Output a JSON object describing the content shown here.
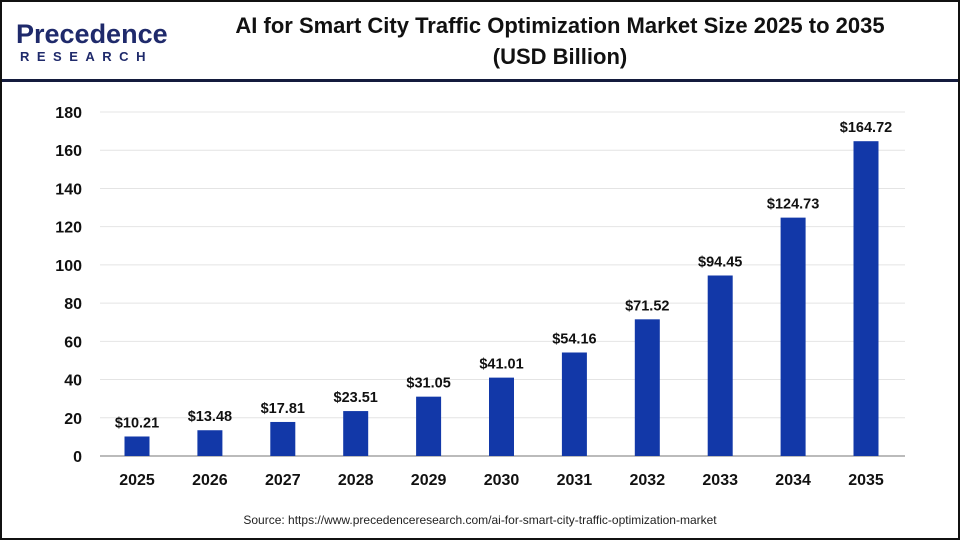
{
  "header": {
    "logo_text": "Precedence",
    "logo_subtext": "RESEARCH",
    "title_line1": "AI for Smart City Traffic Optimization Market Size 2025 to 2035",
    "title_line2": "(USD Billion)"
  },
  "source": "Source: https://www.precedenceresearch.com/ai-for-smart-city-traffic-optimization-market",
  "chart_data": {
    "type": "bar",
    "title": "AI for Smart City Traffic Optimization Market Size 2025 to 2035 (USD Billion)",
    "categories": [
      "2025",
      "2026",
      "2027",
      "2028",
      "2029",
      "2030",
      "2031",
      "2032",
      "2033",
      "2034",
      "2035"
    ],
    "values": [
      10.21,
      13.48,
      17.81,
      23.51,
      31.05,
      41.01,
      54.16,
      71.52,
      94.45,
      124.73,
      164.72
    ],
    "data_labels": [
      "$10.21",
      "$13.48",
      "$17.81",
      "$23.51",
      "$31.05",
      "$41.01",
      "$54.16",
      "$71.52",
      "$94.45",
      "$124.73",
      "$164.72"
    ],
    "yticks": [
      0,
      20,
      40,
      60,
      80,
      100,
      120,
      140,
      160,
      180
    ],
    "ylim": [
      0,
      180
    ],
    "xlabel": "",
    "ylabel": "",
    "grid": true,
    "bar_color": "#1238a8"
  }
}
